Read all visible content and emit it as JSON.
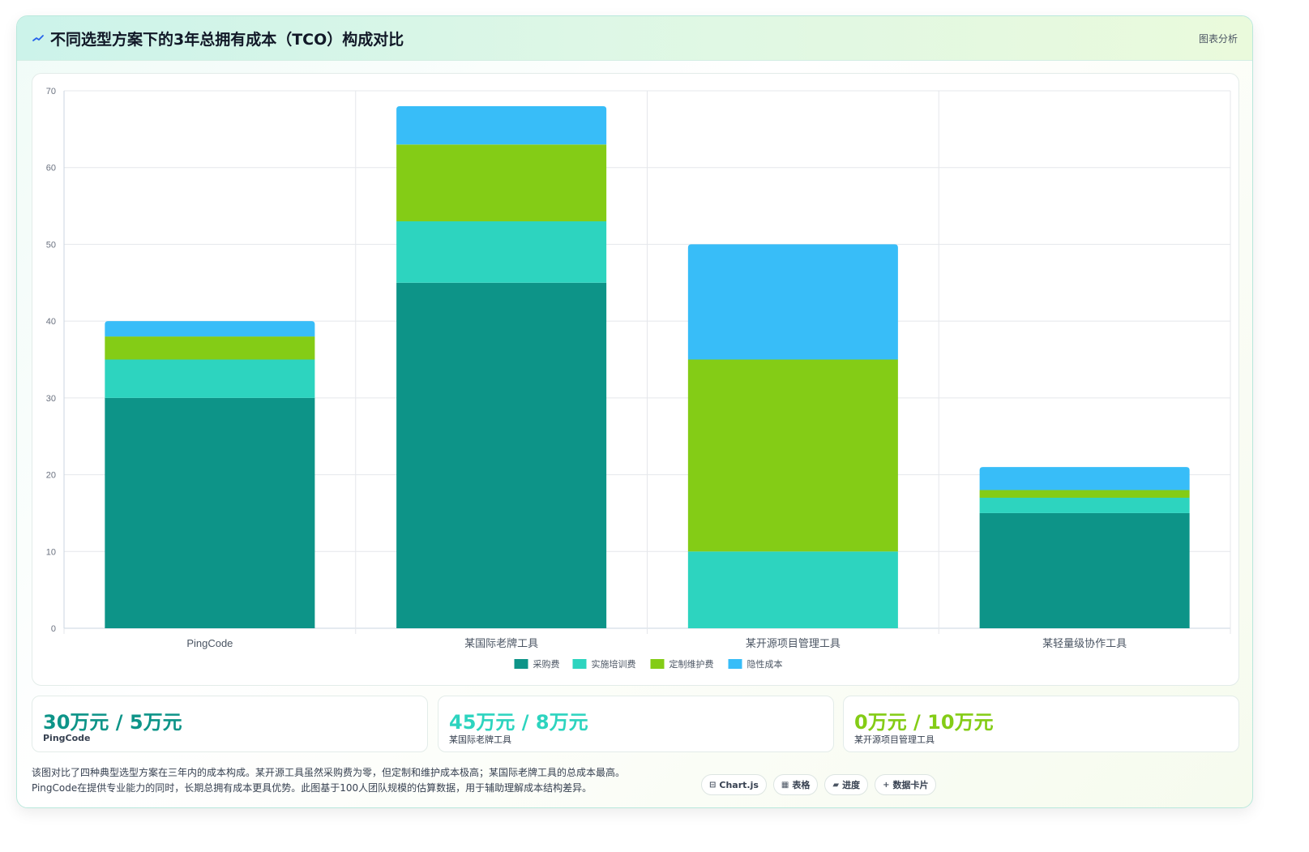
{
  "header": {
    "title": "不同选型方案下的3年总拥有成本（TCO）构成对比",
    "tag": "图表分析",
    "logo_icon": "chart-line-icon"
  },
  "chart_data": {
    "type": "bar",
    "stacked": true,
    "title": "",
    "xlabel": "",
    "ylabel": "",
    "ylim": [
      0,
      70
    ],
    "yticks": [
      0,
      10,
      20,
      30,
      40,
      50,
      60,
      70
    ],
    "grid": true,
    "legend_position": "bottom",
    "categories": [
      "PingCode",
      "某国际老牌工具",
      "某开源项目管理工具",
      "某轻量级协作工具"
    ],
    "series": [
      {
        "name": "采购费",
        "color": "#0d9488",
        "values": [
          30,
          45,
          0,
          15
        ]
      },
      {
        "name": "实施培训费",
        "color": "#2dd4bf",
        "values": [
          5,
          8,
          10,
          2
        ]
      },
      {
        "name": "定制维护费",
        "color": "#84cc16",
        "values": [
          3,
          10,
          25,
          1
        ]
      },
      {
        "name": "隐性成本",
        "color": "#38bdf8",
        "values": [
          2,
          5,
          15,
          3
        ]
      }
    ]
  },
  "stats": [
    {
      "value": "30万元 / 5万元",
      "label": "PingCode",
      "color": "#0d9488"
    },
    {
      "value": "45万元 / 8万元",
      "label": "某国际老牌工具",
      "color": "#2dd4bf"
    },
    {
      "value": "0万元 / 10万元",
      "label": "某开源项目管理工具",
      "color": "#84cc16"
    }
  ],
  "note": {
    "line1": "该图对比了四种典型选型方案在三年内的成本构成。某开源工具虽然采购费为零，但定制和维护成本极高；某国际老牌工具的总成本最高。",
    "line2": "PingCode在提供专业能力的同时，长期总拥有成本更具优势。此图基于100人团队规模的估算数据，用于辅助理解成本结构差异。"
  },
  "chips": [
    {
      "icon": "⊟",
      "icon_name": "chart-icon",
      "label": "Chart.js"
    },
    {
      "icon": "▦",
      "icon_name": "table-icon",
      "label": "表格"
    },
    {
      "icon": "▰",
      "icon_name": "progress-icon",
      "label": "进度"
    },
    {
      "icon": "+",
      "icon_name": "plus-icon",
      "label": "数据卡片"
    }
  ]
}
